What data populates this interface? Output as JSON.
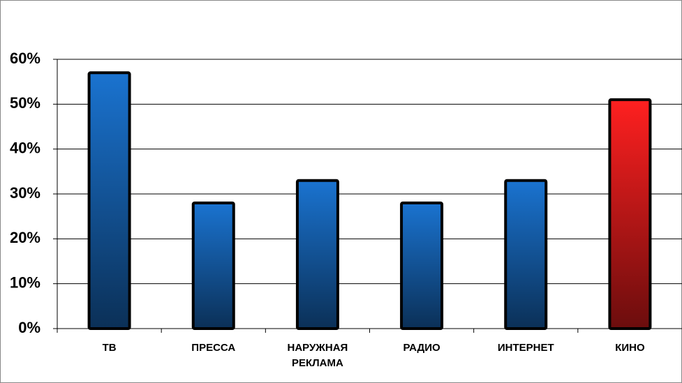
{
  "chart_data": {
    "type": "bar",
    "categories": [
      "ТВ",
      "ПРЕССА",
      "НАРУЖНАЯ РЕКЛАМА",
      "РАДИО",
      "ИНТЕРНЕТ",
      "КИНО"
    ],
    "values": [
      57,
      28,
      33,
      28,
      33,
      51
    ],
    "colors": [
      "#1a73d0",
      "#1a73d0",
      "#1a73d0",
      "#1a73d0",
      "#1a73d0",
      "#ff2020"
    ],
    "ylim": [
      0,
      60
    ],
    "yticks": [
      {
        "value": 0,
        "label": "0%"
      },
      {
        "value": 10,
        "label": "10%"
      },
      {
        "value": 20,
        "label": "20%"
      },
      {
        "value": 30,
        "label": "30%"
      },
      {
        "value": 40,
        "label": "40%"
      },
      {
        "value": 50,
        "label": "50%"
      },
      {
        "value": 60,
        "label": "60%"
      }
    ],
    "grid": true
  }
}
